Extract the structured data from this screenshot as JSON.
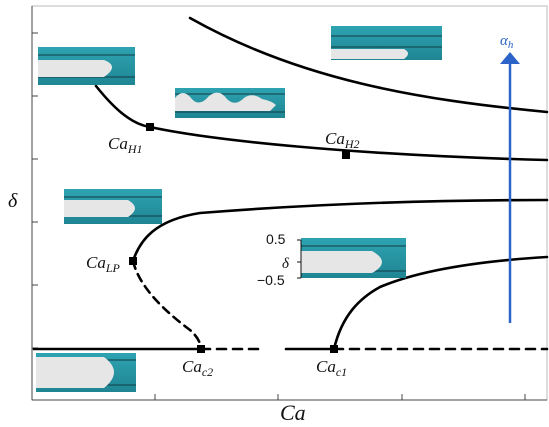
{
  "axes": {
    "x_label": "Ca",
    "y_label": "δ"
  },
  "arrow": {
    "label_main": "α",
    "label_sub": "h",
    "color": "#2b63c8"
  },
  "points": {
    "ca_h1": {
      "main": "Ca",
      "sub": "H1"
    },
    "ca_h2": {
      "main": "Ca",
      "sub": "H2"
    },
    "ca_lp": {
      "main": "Ca",
      "sub": "LP"
    },
    "ca_c2": {
      "main": "Ca",
      "sub": "c2"
    },
    "ca_c1": {
      "main": "Ca",
      "sub": "c1"
    }
  },
  "inset": {
    "tick_top": "0.5",
    "tick_mid": "δ",
    "tick_bottom": "−0.5"
  },
  "colors": {
    "photo_bg": "#2a9aa8",
    "photo_bg_dark": "#1d7f8e",
    "bubble": "#e6e6e6",
    "curve": "#000000"
  }
}
